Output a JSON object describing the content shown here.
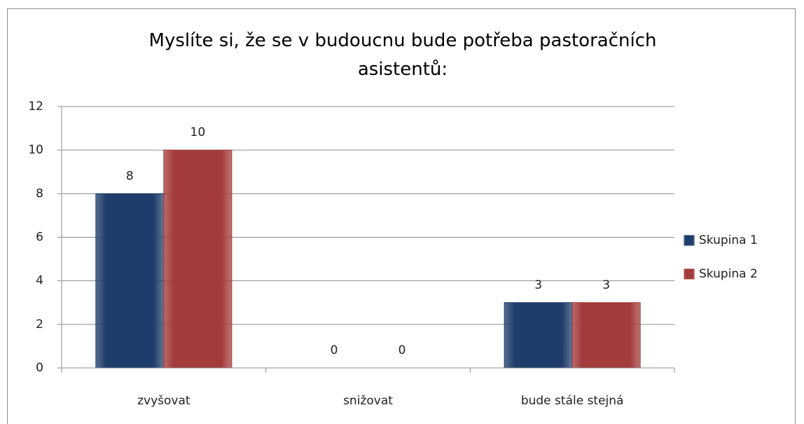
{
  "chart_data": {
    "type": "bar",
    "title": "Myslíte si, že se v budoucnu bude potřeba pastoračních asistentů:",
    "categories": [
      "zvyšovat",
      "snižovat",
      "bude stále stejná"
    ],
    "series": [
      {
        "name": "Skupina 1",
        "color": "#1f3d6b",
        "values": [
          8,
          0,
          3
        ]
      },
      {
        "name": "Skupina 2",
        "color": "#a33b3b",
        "values": [
          10,
          0,
          3
        ]
      }
    ],
    "ylim": [
      0,
      12
    ],
    "yticks": [
      0,
      2,
      4,
      6,
      8,
      10,
      12
    ],
    "grid": true,
    "legend": "right"
  }
}
